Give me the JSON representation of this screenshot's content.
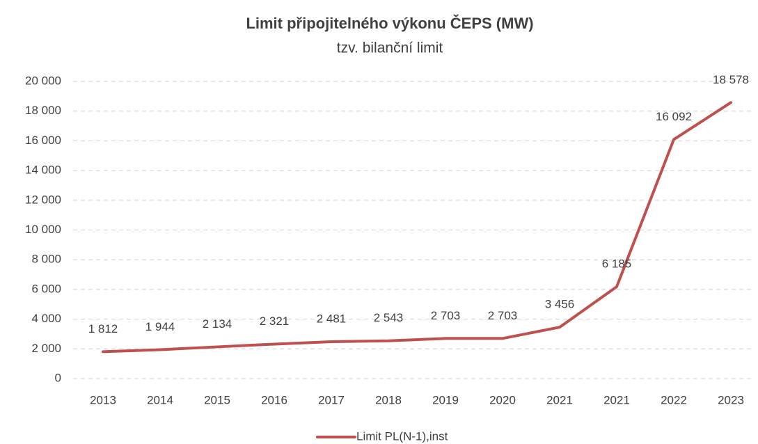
{
  "chart_data": {
    "type": "line",
    "title": "Limit připojitelného výkonu ČEPS (MW)",
    "subtitle": "tzv. bilanční limit",
    "categories": [
      "2013",
      "2014",
      "2015",
      "2016",
      "2017",
      "2018",
      "2019",
      "2020",
      "2021",
      "2021",
      "2022",
      "2023"
    ],
    "series": [
      {
        "name": "Limit PL(N-1),inst",
        "color": "#c0504d",
        "values": [
          1812,
          1944,
          2134,
          2321,
          2481,
          2543,
          2703,
          2703,
          3456,
          6185,
          16092,
          18578
        ],
        "value_labels": [
          "1 812",
          "1 944",
          "2 134",
          "2 321",
          "2 481",
          "2 543",
          "2 703",
          "2 703",
          "3 456",
          "6 185",
          "16 092",
          "18 578"
        ]
      }
    ],
    "ylim": [
      0,
      20000
    ],
    "yticks": [
      0,
      {
        "value": 2000,
        "label": "2 000"
      },
      {
        "value": 4000,
        "label": "4 000"
      },
      {
        "value": 6000,
        "label": "6 000"
      },
      {
        "value": 8000,
        "label": "8 000"
      },
      {
        "value": 10000,
        "label": "10 000"
      },
      {
        "value": 12000,
        "label": "12 000"
      },
      {
        "value": 14000,
        "label": "14 000"
      },
      {
        "value": 16000,
        "label": "16 000"
      },
      {
        "value": 18000,
        "label": "18 000"
      },
      {
        "value": 20000,
        "label": "20 000"
      }
    ],
    "grid": true,
    "legend": "bottom"
  }
}
